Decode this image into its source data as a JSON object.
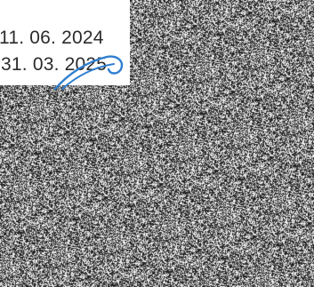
{
  "dates": {
    "line_1": "11. 06. 2024",
    "line_2": "31. 03. 2025"
  },
  "colors": {
    "text": "#2b2b2b",
    "pen_stroke": "#2f7fd0",
    "noise_dark": "#1e1e1e",
    "noise_light": "#f0f0f0"
  },
  "icons": {
    "pen_mark": "handwritten-pen-stroke"
  }
}
